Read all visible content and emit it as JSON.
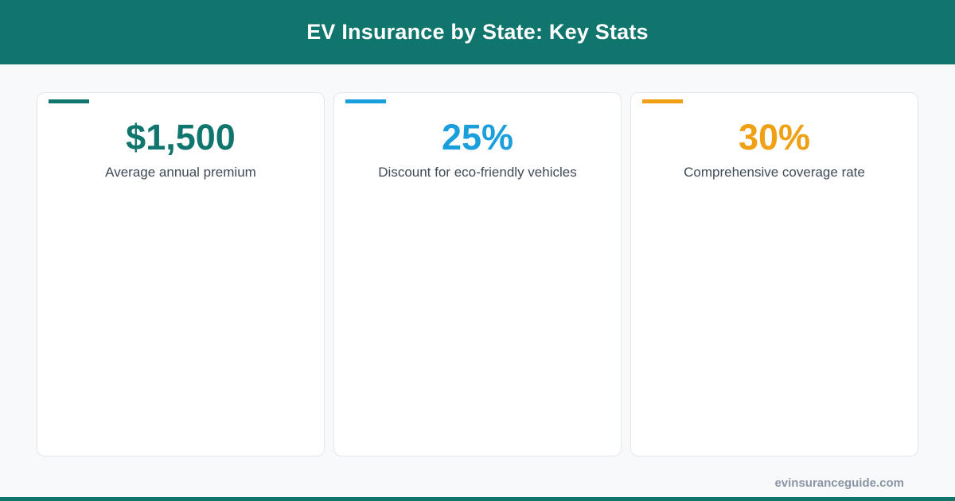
{
  "header": {
    "title": "EV Insurance by State: Key Stats"
  },
  "cards": [
    {
      "value": "$1,500",
      "label": "Average annual premium",
      "accent_color": "#10756d"
    },
    {
      "value": "25%",
      "label": "Discount for eco-friendly vehicles",
      "accent_color": "#1a9fdc"
    },
    {
      "value": "30%",
      "label": "Comprehensive coverage rate",
      "accent_color": "#f0a015"
    }
  ],
  "footer": {
    "url": "evinsuranceguide.com"
  },
  "colors": {
    "brand": "#10756d",
    "background": "#f8f9fb",
    "label_text": "#3f4a57",
    "footer_text": "#8a96a4"
  }
}
